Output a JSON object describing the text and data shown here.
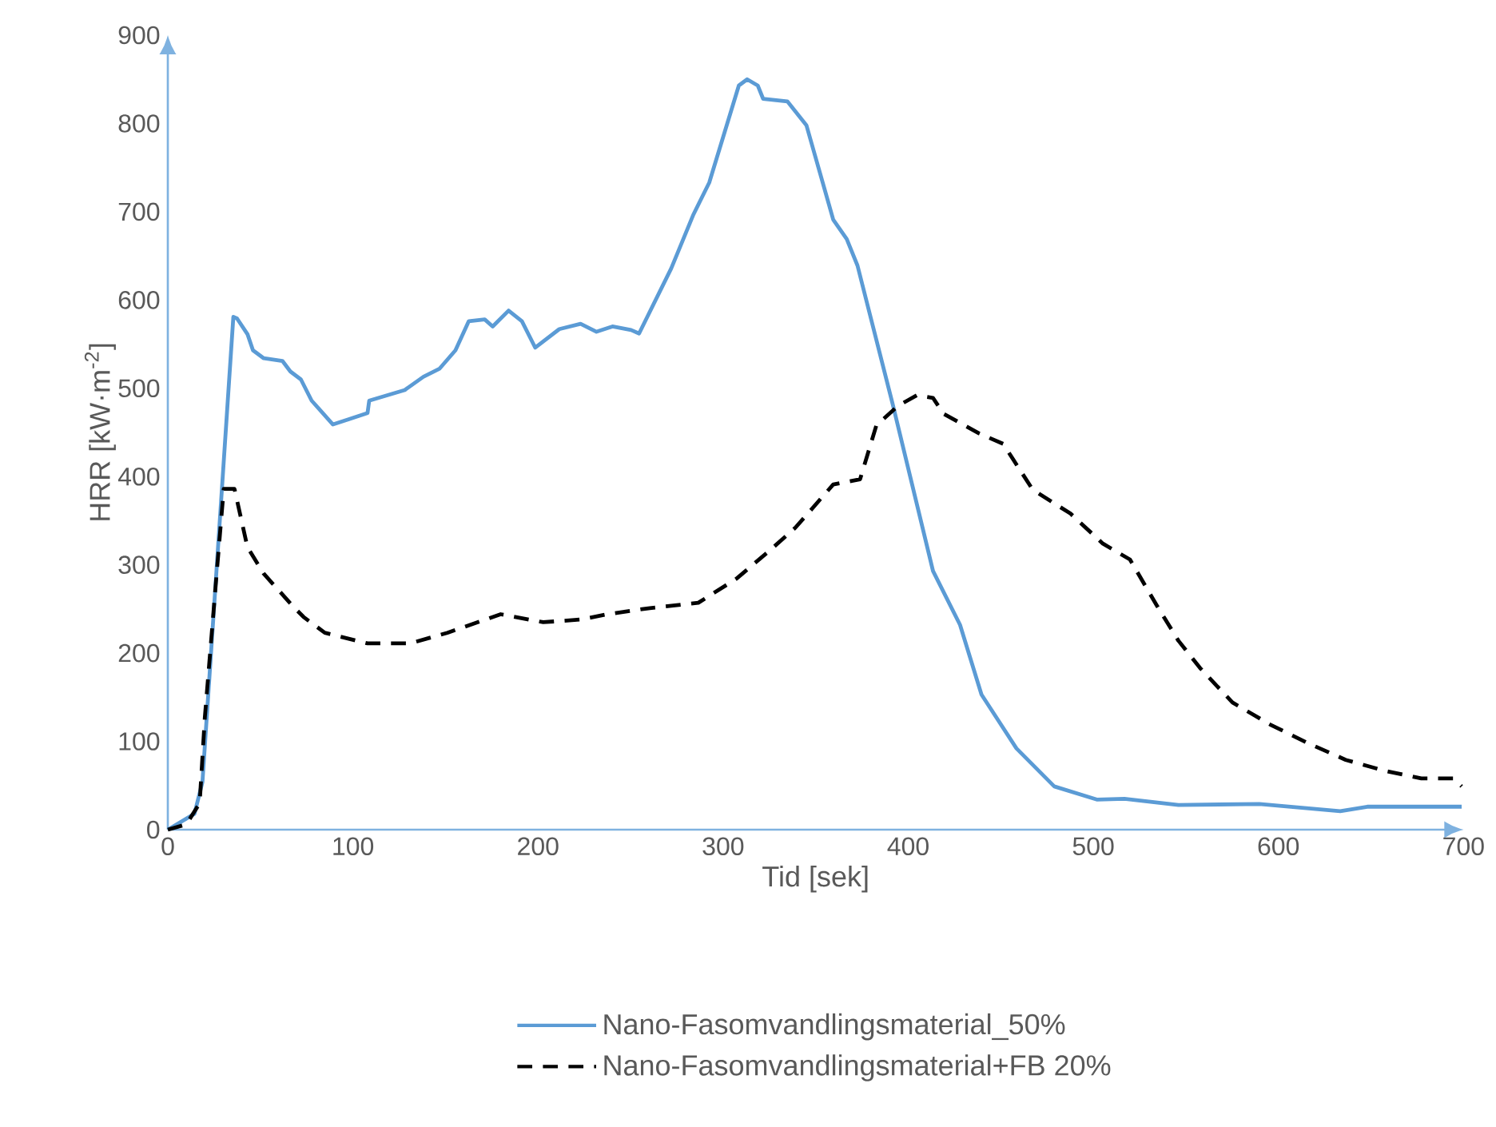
{
  "chart_data": {
    "type": "line",
    "xlabel": "Tid [sek]",
    "ylabel": "HRR [kW·m$^{-2}$]",
    "xlim": [
      0,
      700
    ],
    "ylim": [
      0,
      900
    ],
    "xticks": [
      0,
      100,
      200,
      300,
      400,
      500,
      600,
      700
    ],
    "yticks": [
      0,
      100,
      200,
      300,
      400,
      500,
      600,
      700,
      800,
      900
    ],
    "grid": false,
    "legend": "bottom",
    "series": [
      {
        "name": "Nano-Fasomvandlingsmaterial_50%",
        "color": "#5b9bd5",
        "line_style": "solid",
        "x": [
          0,
          14.4,
          18.7,
          35.4,
          37.4,
          43.1,
          46,
          51.8,
          61.9,
          66.2,
          71.9,
          77.7,
          89.2,
          97.8,
          107.9,
          108.8,
          128,
          138.1,
          146.7,
          155.4,
          162.6,
          171.2,
          175.5,
          184.1,
          191.3,
          198.5,
          211.5,
          223,
          231.6,
          240.2,
          250.3,
          254.6,
          272,
          284,
          292.5,
          308.5,
          313,
          318.7,
          321.6,
          334.7,
          345,
          359.5,
          366.8,
          372.6,
          391.5,
          413.4,
          428,
          439.6,
          458.5,
          478.9,
          502.2,
          516.8,
          546,
          589.7,
          633.4,
          648,
          699
        ],
        "values": [
          0,
          18,
          54,
          581,
          579,
          561,
          543,
          534,
          531,
          519,
          510,
          486,
          459,
          465,
          472,
          486,
          498,
          513,
          522,
          543,
          576,
          578,
          570,
          588,
          576,
          546,
          567,
          573,
          564,
          570,
          566,
          562,
          636,
          697,
          733,
          843,
          850,
          843,
          828,
          825,
          798,
          691,
          669,
          639,
          483,
          293,
          232,
          153,
          92,
          49,
          34,
          35,
          28,
          29,
          21,
          26,
          26
        ]
      },
      {
        "name": "Nano-Fasomvandlingsmaterial+FB 20%",
        "color": "#000000",
        "line_style": "dashed",
        "x": [
          0,
          10,
          17.2,
          20,
          25.9,
          30.2,
          36,
          43,
          51.8,
          67.6,
          73.3,
          84.8,
          107.9,
          130.9,
          151,
          179.8,
          202.8,
          223,
          237.3,
          260.4,
          286.6,
          307,
          324.5,
          339,
          359.5,
          374,
          382.8,
          394.4,
          404.6,
          413.4,
          419.2,
          438.2,
          451.3,
          467.3,
          487.7,
          505.2,
          519.8,
          534.3,
          546,
          557.7,
          575.2,
          595.6,
          616,
          636.4,
          656.8,
          677.2,
          694.7,
          699
        ],
        "values": [
          0,
          6,
          30,
          127,
          278,
          386,
          386,
          320,
          290,
          253,
          241,
          223,
          211,
          211,
          223,
          244,
          235,
          238,
          244,
          251,
          257,
          284,
          315,
          342,
          391,
          397,
          458,
          480,
          492,
          489,
          471,
          449,
          437,
          385,
          358,
          324,
          306,
          254,
          214,
          183,
          144,
          119,
          98,
          79,
          67,
          58,
          58,
          49
        ]
      }
    ]
  }
}
